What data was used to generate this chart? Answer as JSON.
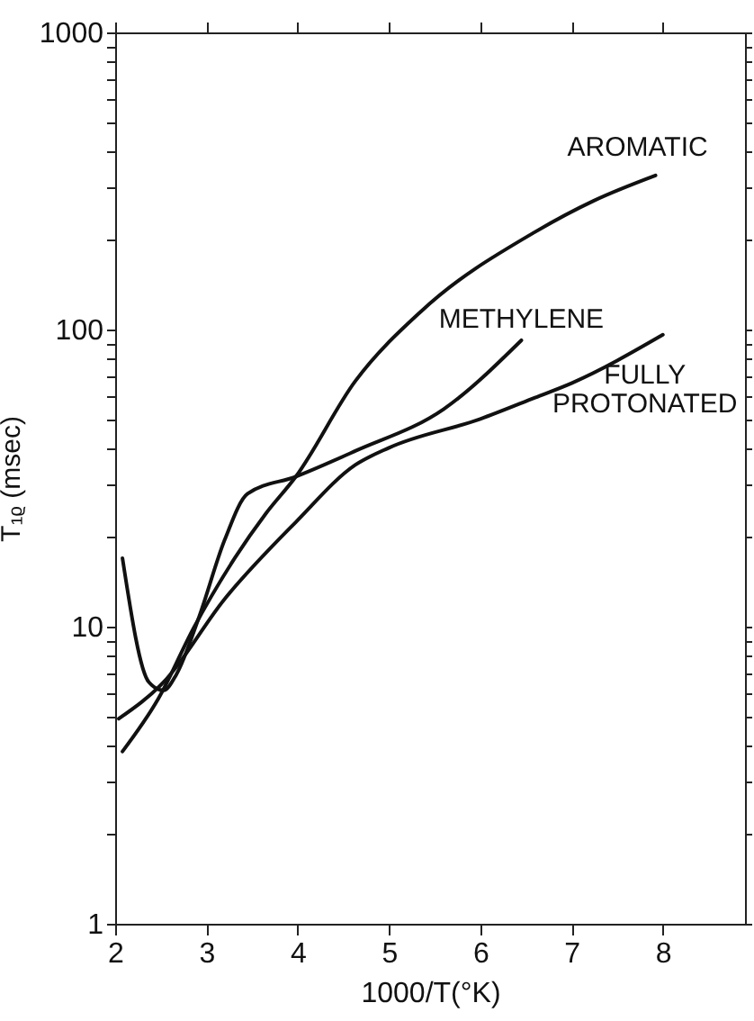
{
  "chart_data": {
    "type": "line",
    "xlabel": "1000/T(°K)",
    "ylabel": "T₁ᵨ (msec)",
    "log": "y",
    "grid": false,
    "marker": "none",
    "line_style": "solid",
    "xlim": [
      2,
      8.9
    ],
    "xticks": [
      2,
      3,
      4,
      5,
      6,
      7,
      8
    ],
    "ylim": [
      1,
      1000
    ],
    "yticks": [
      1,
      {
        "value": 2,
        "label": null
      },
      {
        "value": 3,
        "label": null
      },
      {
        "value": 4,
        "label": null
      },
      {
        "value": 5,
        "label": null
      },
      {
        "value": 6,
        "label": null
      },
      {
        "value": 7,
        "label": null
      },
      {
        "value": 8,
        "label": null
      },
      {
        "value": 9,
        "label": null
      },
      10,
      {
        "value": 20,
        "label": null
      },
      {
        "value": 30,
        "label": null
      },
      {
        "value": 40,
        "label": null
      },
      {
        "value": 50,
        "label": null
      },
      {
        "value": 60,
        "label": null
      },
      {
        "value": 70,
        "label": null
      },
      {
        "value": 80,
        "label": null
      },
      {
        "value": 90,
        "label": null
      },
      100,
      {
        "value": 200,
        "label": null
      },
      {
        "value": 300,
        "label": null
      },
      {
        "value": 400,
        "label": null
      },
      {
        "value": 500,
        "label": null
      },
      {
        "value": 600,
        "label": null
      },
      {
        "value": 700,
        "label": null
      },
      {
        "value": 800,
        "label": null
      },
      {
        "value": 900,
        "label": null
      },
      1000
    ],
    "series": [
      {
        "name": "AROMATIC",
        "color": "#111111",
        "x": [
          2.08,
          2.47,
          2.86,
          3.31,
          3.65,
          3.98,
          4.63,
          5.35,
          6.6,
          7.24,
          7.92
        ],
        "values": [
          3.8,
          5.7,
          9.9,
          17,
          24,
          32,
          67,
          115,
          213,
          271,
          330
        ]
      },
      {
        "name": "METHYLENE",
        "color": "#111111",
        "x": [
          2.08,
          2.37,
          2.53,
          2.67,
          2.92,
          3.2,
          3.45,
          3.98,
          4.63,
          5.6,
          6.45
        ],
        "values": [
          17,
          6.5,
          6.1,
          6.9,
          10.8,
          19.6,
          28,
          32,
          39,
          54,
          92
        ]
      },
      {
        "name": "FULLY PROTONATED",
        "color": "#111111",
        "x": [
          2.04,
          2.53,
          3.2,
          3.98,
          4.63,
          5,
          6,
          6.6,
          7,
          8
        ],
        "values": [
          4.9,
          6.5,
          12.4,
          22.5,
          35,
          40,
          50,
          59,
          66,
          96
        ]
      }
    ]
  }
}
